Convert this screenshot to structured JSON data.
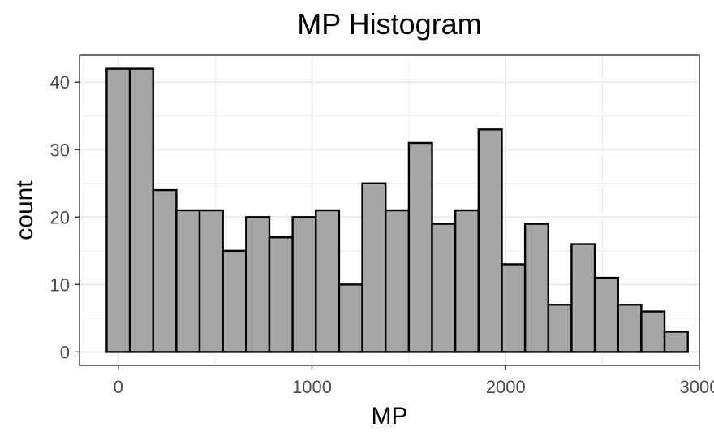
{
  "chart_data": {
    "type": "bar",
    "title": "MP Histogram",
    "xlabel": "MP",
    "ylabel": "count",
    "bin_width": 120,
    "bin_centers": [
      0,
      120,
      240,
      360,
      480,
      600,
      720,
      840,
      960,
      1080,
      1200,
      1320,
      1440,
      1560,
      1680,
      1800,
      1920,
      2040,
      2160,
      2280,
      2400,
      2520,
      2640,
      2760,
      2880
    ],
    "values": [
      42,
      42,
      24,
      21,
      21,
      15,
      20,
      17,
      20,
      21,
      10,
      25,
      21,
      31,
      19,
      21,
      33,
      13,
      19,
      7,
      16,
      11,
      7,
      6,
      3
    ],
    "xlim": [
      -200,
      3000
    ],
    "ylim": [
      -2,
      44
    ],
    "x_ticks": [
      0,
      1000,
      2000,
      3000
    ],
    "x_tick_labels": [
      "0",
      "1000",
      "2000",
      "3000"
    ],
    "y_ticks": [
      0,
      10,
      20,
      30,
      40
    ],
    "y_tick_labels": [
      "0",
      "10",
      "20",
      "30",
      "40"
    ],
    "bar_fill": "#a6a6a6",
    "bar_stroke": "#000000",
    "grid": true,
    "grid_color": "#ebebeb",
    "panel_border": "#333333"
  }
}
